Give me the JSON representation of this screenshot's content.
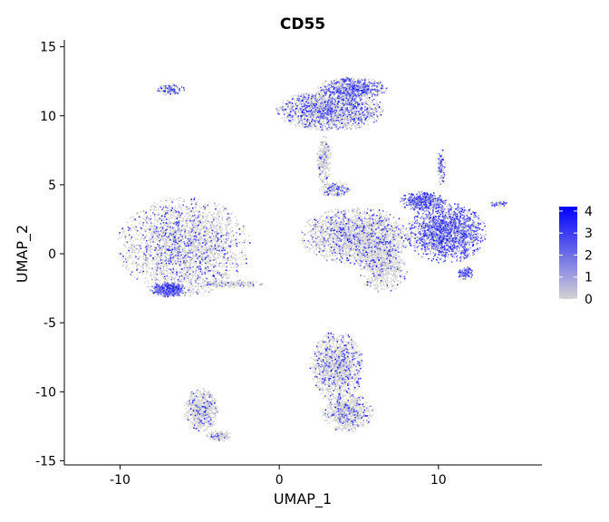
{
  "chart_data": {
    "type": "scatter",
    "title": "CD55",
    "xlabel": "UMAP_1",
    "ylabel": "UMAP_2",
    "xlim": [
      -13.5,
      16.5
    ],
    "ylim": [
      -15.3,
      15.5
    ],
    "xticks": [
      -10,
      0,
      10
    ],
    "yticks": [
      -15,
      -10,
      -5,
      0,
      5,
      10,
      15
    ],
    "grid": false,
    "colors": {
      "low": "#d3d3d3",
      "high": "#0000ff",
      "axis": "#000000"
    },
    "legend": {
      "position": "right",
      "min": 0,
      "max": 4.2,
      "ticks": [
        0,
        1,
        2,
        3,
        4
      ]
    },
    "clusters": [
      {
        "name": "left-large",
        "cx": -6.0,
        "cy": 0.5,
        "rx": 4.2,
        "ry": 3.6,
        "n": 2600,
        "expr": 0.25
      },
      {
        "name": "left-bottom-high",
        "cx": -7.0,
        "cy": -2.6,
        "rx": 1.1,
        "ry": 0.55,
        "n": 500,
        "expr": 0.85
      },
      {
        "name": "left-tail",
        "cx": -3.0,
        "cy": -2.2,
        "rx": 2.0,
        "ry": 0.3,
        "n": 220,
        "expr": 0.1
      },
      {
        "name": "small-top-left",
        "cx": -6.8,
        "cy": 11.9,
        "rx": 0.9,
        "ry": 0.4,
        "n": 120,
        "expr": 0.55
      },
      {
        "name": "top-middle",
        "cx": 3.2,
        "cy": 10.4,
        "rx": 3.4,
        "ry": 1.5,
        "n": 1900,
        "expr": 0.35
      },
      {
        "name": "top-middle-upper",
        "cx": 4.6,
        "cy": 12.0,
        "rx": 2.2,
        "ry": 0.8,
        "n": 700,
        "expr": 0.55
      },
      {
        "name": "stem",
        "cx": 2.8,
        "cy": 6.8,
        "rx": 0.45,
        "ry": 1.8,
        "n": 300,
        "expr": 0.1
      },
      {
        "name": "center",
        "cx": 4.8,
        "cy": 1.3,
        "rx": 3.5,
        "ry": 2.1,
        "n": 2100,
        "expr": 0.2
      },
      {
        "name": "center-down",
        "cx": 6.5,
        "cy": -0.8,
        "rx": 1.6,
        "ry": 2.0,
        "n": 700,
        "expr": 0.15
      },
      {
        "name": "center-upper",
        "cx": 3.5,
        "cy": 4.7,
        "rx": 1.0,
        "ry": 0.6,
        "n": 200,
        "expr": 0.3
      },
      {
        "name": "right-blue",
        "cx": 10.5,
        "cy": 1.5,
        "rx": 2.5,
        "ry": 2.2,
        "n": 1700,
        "expr": 0.75
      },
      {
        "name": "right-upper",
        "cx": 9.0,
        "cy": 3.8,
        "rx": 1.5,
        "ry": 0.7,
        "n": 500,
        "expr": 0.7
      },
      {
        "name": "right-spike",
        "cx": 10.2,
        "cy": 6.3,
        "rx": 0.25,
        "ry": 1.3,
        "n": 100,
        "expr": 0.5
      },
      {
        "name": "right-low",
        "cx": 11.7,
        "cy": -1.4,
        "rx": 0.5,
        "ry": 0.45,
        "n": 120,
        "expr": 0.8
      },
      {
        "name": "far-right-small",
        "cx": 13.8,
        "cy": 3.6,
        "rx": 0.6,
        "ry": 0.22,
        "n": 70,
        "expr": 0.35
      },
      {
        "name": "bottom-middle",
        "cx": 3.6,
        "cy": -8.2,
        "rx": 1.7,
        "ry": 2.6,
        "n": 1300,
        "expr": 0.22
      },
      {
        "name": "bottom-middle-low",
        "cx": 4.3,
        "cy": -11.5,
        "rx": 1.6,
        "ry": 1.4,
        "n": 750,
        "expr": 0.2
      },
      {
        "name": "bottom-left-small",
        "cx": -4.9,
        "cy": -11.3,
        "rx": 1.1,
        "ry": 1.6,
        "n": 650,
        "expr": 0.12
      },
      {
        "name": "bottom-left-tail",
        "cx": -3.8,
        "cy": -13.2,
        "rx": 0.8,
        "ry": 0.4,
        "n": 150,
        "expr": 0.15
      }
    ]
  }
}
